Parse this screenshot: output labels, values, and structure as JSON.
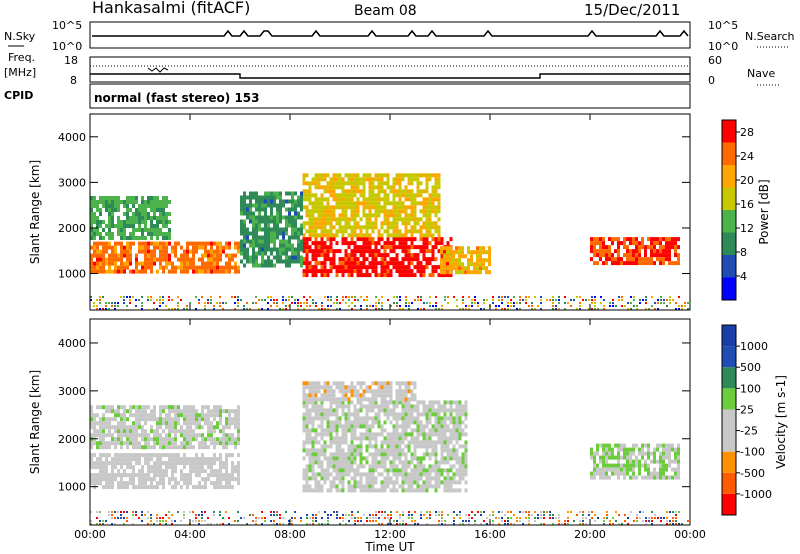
{
  "header": {
    "station": "Hankasalmi (fitACF)",
    "beam": "Beam 08",
    "date": "15/Dec/2011"
  },
  "noise_panel": {
    "left_label": "N.Sky",
    "right_label": "N.Search",
    "tick_high": "10^5",
    "tick_low": "10^0"
  },
  "freq_panel": {
    "left_label_line1": "Freq.",
    "left_label_line2": "[MHz]",
    "left_tick_high": "18",
    "left_tick_low": "8",
    "right_label": "Nave",
    "right_tick_high": "60",
    "right_tick_low": "0",
    "cpid_label": "CPID"
  },
  "cpid_text": "normal (fast stereo) 153",
  "colors": {
    "power_scale": [
      "#0000ff",
      "#1f4db3",
      "#2e8b57",
      "#4cb24c",
      "#c8c800",
      "#ffa500",
      "#ff6a00",
      "#ff0000"
    ],
    "velocity_scale": [
      "#ff0000",
      "#ff5a00",
      "#ff9000",
      "#c8c8c8",
      "#c8c8c8",
      "#6ccc3c",
      "#2e8b57",
      "#1f4db3",
      "#1a3fa8"
    ],
    "ground_scatter": "#c0c0c0"
  },
  "chart_data": [
    {
      "type": "heatmap",
      "name": "Power",
      "ylabel": "Slant Range [km]",
      "y_ticks": [
        "1000",
        "2000",
        "3000",
        "4000"
      ],
      "ylim": [
        200,
        4500
      ],
      "x_ticks": [
        "00:00",
        "04:00",
        "08:00",
        "12:00",
        "16:00",
        "20:00",
        "00:00"
      ],
      "xlim_hours": [
        0,
        24
      ],
      "colorbar_label": "Power [dB]",
      "colorbar_ticks": [
        "4",
        "8",
        "12",
        "16",
        "20",
        "24",
        "28"
      ],
      "colorbar_range": [
        0,
        30
      ],
      "blobs": [
        {
          "t0": 0.0,
          "t1": 6.0,
          "r0": 1000,
          "r1": 1700,
          "level": 24
        },
        {
          "t0": 0.0,
          "t1": 3.2,
          "r0": 1800,
          "r1": 2700,
          "level": 12
        },
        {
          "t0": 8.5,
          "t1": 14.5,
          "r0": 1000,
          "r1": 1800,
          "level": 28
        },
        {
          "t0": 8.5,
          "t1": 14.0,
          "r0": 1800,
          "r1": 3200,
          "level": 18
        },
        {
          "t0": 14.0,
          "t1": 16.0,
          "r0": 1000,
          "r1": 1600,
          "level": 20
        },
        {
          "t0": 20.0,
          "t1": 23.5,
          "r0": 1200,
          "r1": 1800,
          "level": 26
        },
        {
          "t0": 6.0,
          "t1": 8.5,
          "r0": 1200,
          "r1": 2800,
          "level": 10
        }
      ]
    },
    {
      "type": "heatmap",
      "name": "Velocity",
      "ylabel": "Slant Range [km]",
      "y_ticks": [
        "1000",
        "2000",
        "3000",
        "4000"
      ],
      "ylim": [
        200,
        4500
      ],
      "x_ticks": [
        "00:00",
        "04:00",
        "08:00",
        "12:00",
        "16:00",
        "20:00",
        "00:00"
      ],
      "xlim_hours": [
        0,
        24
      ],
      "xlabel": "Time UT",
      "colorbar_label": "Velocity [m s-1]",
      "colorbar_ticks": [
        "1000",
        "500",
        "100",
        "25",
        "-25",
        "-100",
        "-500",
        "-1000"
      ],
      "colorbar_range": [
        -1000,
        1000
      ],
      "blobs": [
        {
          "t0": 0.0,
          "t1": 6.0,
          "r0": 1000,
          "r1": 1700,
          "level": -150
        },
        {
          "t0": 0.0,
          "t1": 6.0,
          "r0": 1800,
          "r1": 2700,
          "level": 0
        },
        {
          "t0": 8.5,
          "t1": 15.0,
          "r0": 900,
          "r1": 2800,
          "level": 0
        },
        {
          "t0": 8.5,
          "t1": 13.0,
          "r0": 2800,
          "r1": 3200,
          "level": -200
        },
        {
          "t0": 20.0,
          "t1": 23.5,
          "r0": 1200,
          "r1": 1900,
          "level": 120
        }
      ]
    }
  ]
}
